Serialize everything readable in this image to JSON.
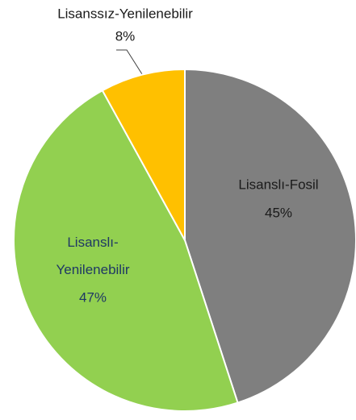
{
  "chart_data": {
    "type": "pie",
    "categories": [
      "Lisanslı-Fosil",
      "Lisanslı-Yenilenebilir",
      "Lisanssız-Yenilenebilir"
    ],
    "values": [
      45,
      47,
      8
    ],
    "value_labels": [
      "45%",
      "47%",
      "8%"
    ],
    "colors": [
      "#7f7f7f",
      "#92d050",
      "#ffc000"
    ]
  }
}
